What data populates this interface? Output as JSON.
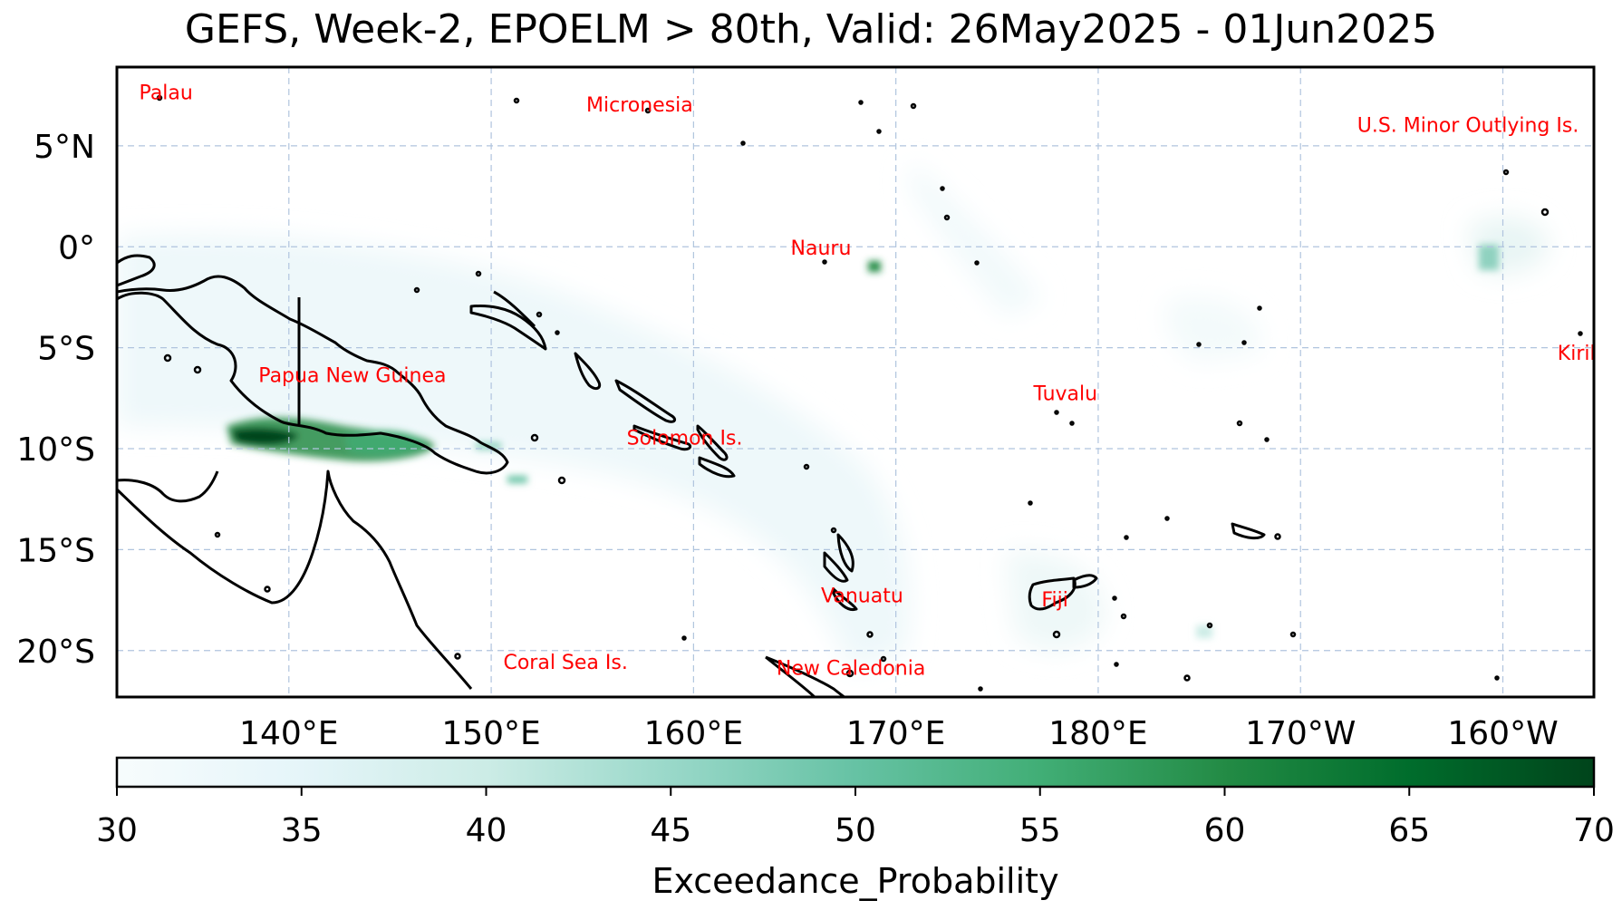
{
  "title": "GEFS, Week-2, EPOELM > 80th, Valid: 26May2025 - 01Jun2025",
  "map": {
    "lon_range": [
      131.5,
      204.5
    ],
    "lat_range": [
      -22.3,
      8.9
    ],
    "lat_ticks": [
      {
        "value": 5,
        "label": "5°N"
      },
      {
        "value": 0,
        "label": "0°"
      },
      {
        "value": -5,
        "label": "5°S"
      },
      {
        "value": -10,
        "label": "10°S"
      },
      {
        "value": -15,
        "label": "15°S"
      },
      {
        "value": -20,
        "label": "20°S"
      }
    ],
    "lon_ticks": [
      {
        "value": 140,
        "label": "140°E"
      },
      {
        "value": 150,
        "label": "150°E"
      },
      {
        "value": 160,
        "label": "160°E"
      },
      {
        "value": 170,
        "label": "170°E"
      },
      {
        "value": 180,
        "label": "180°E"
      },
      {
        "value": 190,
        "label": "170°W"
      },
      {
        "value": 200,
        "label": "160°W"
      }
    ],
    "gridlines": true,
    "places": [
      {
        "name": "Palau",
        "lon": 132.6,
        "lat": 7.3
      },
      {
        "name": "Micronesia",
        "lon": 154.7,
        "lat": 6.7
      },
      {
        "name": "U.S. Minor Outlying Is.",
        "lon": 192.8,
        "lat": 5.7
      },
      {
        "name": "Nauru",
        "lon": 164.8,
        "lat": -0.4
      },
      {
        "name": "Papua New Guinea",
        "lon": 138.5,
        "lat": -6.7
      },
      {
        "name": "Kiribati",
        "lon": 202.7,
        "lat": -5.6
      },
      {
        "name": "Tuvalu",
        "lon": 176.8,
        "lat": -7.6
      },
      {
        "name": "Solomon Is.",
        "lon": 156.7,
        "lat": -9.8
      },
      {
        "name": "Vanuatu",
        "lon": 166.3,
        "lat": -17.6
      },
      {
        "name": "Fiji",
        "lon": 177.2,
        "lat": -17.8
      },
      {
        "name": "Coral Sea Is.",
        "lon": 150.6,
        "lat": -20.9
      },
      {
        "name": "New Caledonia",
        "lon": 164.1,
        "lat": -21.2
      }
    ],
    "high_probability_regions": [
      {
        "name": "gulf-of-papua",
        "lon": 141.5,
        "lat": -9.6,
        "value": 66
      },
      {
        "name": "png-south-coast",
        "lon": 145.5,
        "lat": -9.9,
        "value": 55
      },
      {
        "name": "nauru-area",
        "lon": 170.0,
        "lat": -0.9,
        "value": 55
      },
      {
        "name": "kiribati-phoenix",
        "lon": 199.9,
        "lat": -0.4,
        "value": 42
      },
      {
        "name": "fiji-area",
        "lon": 180.5,
        "lat": -17.5,
        "value": 33
      }
    ]
  },
  "colorbar": {
    "label": "Exceedance_Probability",
    "min": 30,
    "max": 70,
    "ticks": [
      "30",
      "35",
      "40",
      "45",
      "50",
      "55",
      "60",
      "65",
      "70"
    ],
    "colors": [
      "#f7fcfd",
      "#e5f5f9",
      "#ccece6",
      "#99d8c9",
      "#66c2a4",
      "#41ae76",
      "#238b45",
      "#006d2c",
      "#00441b"
    ]
  }
}
